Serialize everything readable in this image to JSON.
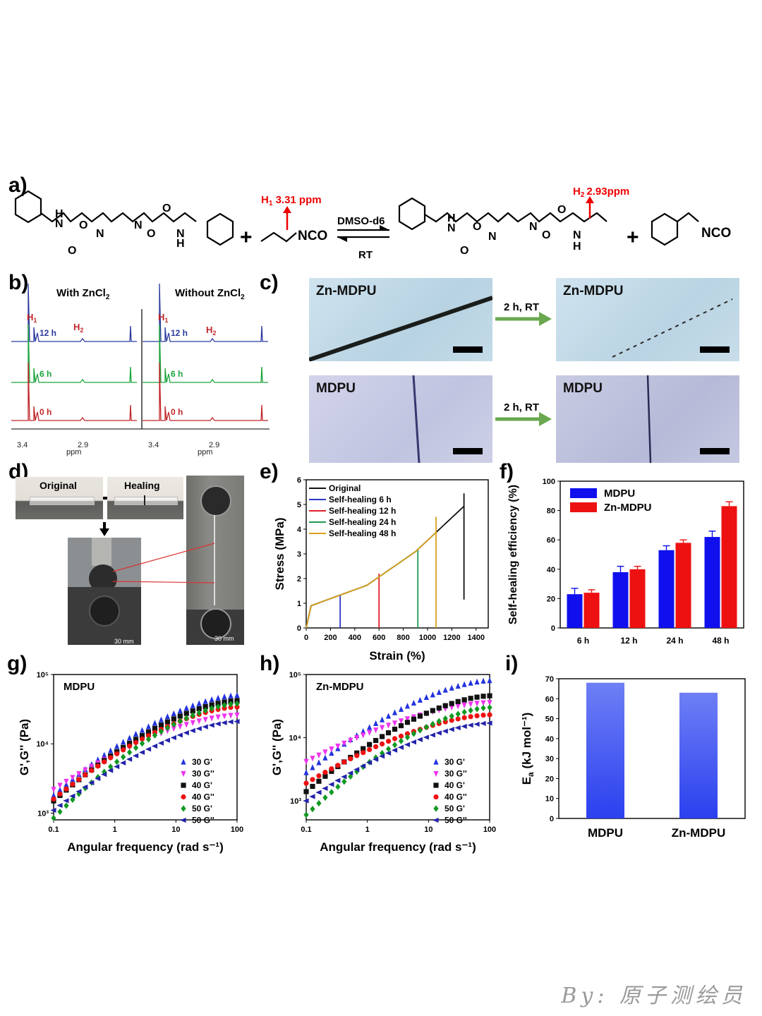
{
  "panel_labels": {
    "a": "a)",
    "b": "b)",
    "c": "c)",
    "d": "d)",
    "e": "e)",
    "f": "f)",
    "g": "g)",
    "h": "h)",
    "i": "i)"
  },
  "scheme": {
    "h1_label": "H",
    "h1_sub": "1",
    "h1_value": " 3.31 ppm",
    "h2_label": "H",
    "h2_sub": "2",
    "h2_value": "2.93ppm",
    "arrow_top": "DMSO-d6",
    "arrow_bottom": "RT",
    "plus": "+",
    "nco": "NCO",
    "atoms": {
      "N": "N",
      "H": "H",
      "O": "O"
    }
  },
  "nmr": {
    "left_title": "With ZnCl",
    "right_title": "Without ZnCl",
    "title_sub": "2",
    "h1": "H",
    "h1_sub": "1",
    "h2": "H",
    "h2_sub": "2",
    "traces": [
      {
        "label": "12 h",
        "color": "#2b3a9e"
      },
      {
        "label": "6 h",
        "color": "#1aa33b"
      },
      {
        "label": "0 h",
        "color": "#c0262a"
      }
    ],
    "ticks": [
      "3.4",
      "2.9"
    ],
    "unit": "ppm"
  },
  "micro": {
    "tl": "Zn-MDPU",
    "tr": "Zn-MDPU",
    "bl": "MDPU",
    "br": "MDPU",
    "arrow1": "2 h, RT",
    "arrow2": "2 h, RT"
  },
  "photo_d": {
    "original": "Original",
    "healing": "Healing",
    "scale1": "30 mm",
    "scale2": "30 mm"
  },
  "chart_data": [
    {
      "id": "e",
      "type": "line",
      "xlabel": "Strain (%)",
      "ylabel": "Stress (MPa)",
      "xlim": [
        0,
        1500
      ],
      "ylim": [
        0,
        6
      ],
      "xticks": [
        "0",
        "200",
        "400",
        "600",
        "800",
        "1000",
        "1200",
        "1400"
      ],
      "yticks": [
        "0",
        "1",
        "2",
        "3",
        "4",
        "5",
        "6"
      ],
      "series": [
        {
          "name": "Original",
          "color": "#111111",
          "break_strain": 1300,
          "break_stress": 5.45
        },
        {
          "name": "Self-healing 6 h",
          "color": "#2a36c8",
          "break_strain": 280,
          "break_stress": 1.35
        },
        {
          "name": "Self-healing 12 h",
          "color": "#e0202a",
          "break_strain": 600,
          "break_stress": 2.2
        },
        {
          "name": "Self-healing 24 h",
          "color": "#1f9a55",
          "break_strain": 920,
          "break_stress": 3.15
        },
        {
          "name": "Self-healing 48 h",
          "color": "#d9a01e",
          "break_strain": 1070,
          "break_stress": 4.5
        }
      ]
    },
    {
      "id": "f",
      "type": "bar",
      "ylabel": "Self-healing efficiency (%)",
      "ylim": [
        0,
        100
      ],
      "yticks": [
        "0",
        "20",
        "40",
        "60",
        "80",
        "100"
      ],
      "categories": [
        "6 h",
        "12 h",
        "24 h",
        "48 h"
      ],
      "series": [
        {
          "name": "MDPU",
          "color": "#1010ee",
          "values": [
            23,
            38,
            53,
            62
          ],
          "errors": [
            4,
            4,
            3,
            4
          ]
        },
        {
          "name": "Zn-MDPU",
          "color": "#ee1111",
          "values": [
            24,
            40,
            58,
            83
          ],
          "errors": [
            2,
            2,
            2,
            3
          ]
        }
      ]
    },
    {
      "id": "g",
      "type": "scatter",
      "title": "MDPU",
      "xlabel": "Angular frequency (rad s⁻¹)",
      "ylabel": "G',G'' (Pa)",
      "xscale": "log",
      "yscale": "log",
      "xlim": [
        0.1,
        100
      ],
      "ylim": [
        800,
        100000
      ],
      "xticks": [
        "0.1",
        "1",
        "10",
        "100"
      ],
      "yticks": [
        "10³",
        "10⁴",
        "10⁵"
      ],
      "series": [
        {
          "name": "30 G'",
          "color": "#2233dd",
          "marker": "tri-up",
          "y0": 1800,
          "y1": 50000
        },
        {
          "name": "30 G''",
          "color": "#ee33ee",
          "marker": "tri-down",
          "y0": 2200,
          "y1": 26000
        },
        {
          "name": "40 G'",
          "color": "#111111",
          "marker": "square",
          "y0": 1500,
          "y1": 42000
        },
        {
          "name": "40 G''",
          "color": "#ee1111",
          "marker": "circle",
          "y0": 1600,
          "y1": 34000
        },
        {
          "name": "50 G'",
          "color": "#119922",
          "marker": "diamond",
          "y0": 850,
          "y1": 38000
        },
        {
          "name": "50 G''",
          "color": "#2222aa",
          "marker": "tri-left",
          "y0": 1100,
          "y1": 21000
        }
      ]
    },
    {
      "id": "h",
      "type": "scatter",
      "title": "Zn-MDPU",
      "xlabel": "Angular frequency (rad s⁻¹)",
      "ylabel": "G',G'' (Pa)",
      "xscale": "log",
      "yscale": "log",
      "xlim": [
        0.1,
        100
      ],
      "ylim": [
        500,
        100000
      ],
      "xticks": [
        "0.1",
        "1",
        "10",
        "100"
      ],
      "yticks": [
        "10³",
        "10⁴",
        "10⁵"
      ],
      "series": [
        {
          "name": "30 G'",
          "color": "#2233dd",
          "marker": "tri-up",
          "y0": 2800,
          "y1": 80000
        },
        {
          "name": "30 G''",
          "color": "#ee33ee",
          "marker": "tri-down",
          "y0": 4200,
          "y1": 36000
        },
        {
          "name": "40 G'",
          "color": "#111111",
          "marker": "square",
          "y0": 1400,
          "y1": 46000
        },
        {
          "name": "40 G''",
          "color": "#ee1111",
          "marker": "circle",
          "y0": 1900,
          "y1": 23000
        },
        {
          "name": "50 G'",
          "color": "#119922",
          "marker": "diamond",
          "y0": 600,
          "y1": 30000
        },
        {
          "name": "50 G''",
          "color": "#2222aa",
          "marker": "tri-left",
          "y0": 1000,
          "y1": 17000
        }
      ]
    },
    {
      "id": "i",
      "type": "bar",
      "ylabel": "E",
      "ylabel_sub": "a",
      "ylabel_unit": " (kJ mol⁻¹)",
      "ylim": [
        0,
        70
      ],
      "yticks": [
        "0",
        "10",
        "20",
        "30",
        "40",
        "50",
        "60",
        "70"
      ],
      "categories": [
        "MDPU",
        "Zn-MDPU"
      ],
      "series": [
        {
          "name": "Ea",
          "color": "#3a55f2",
          "values": [
            68,
            63
          ]
        }
      ]
    }
  ],
  "watermark": "By: 原子测绘员"
}
